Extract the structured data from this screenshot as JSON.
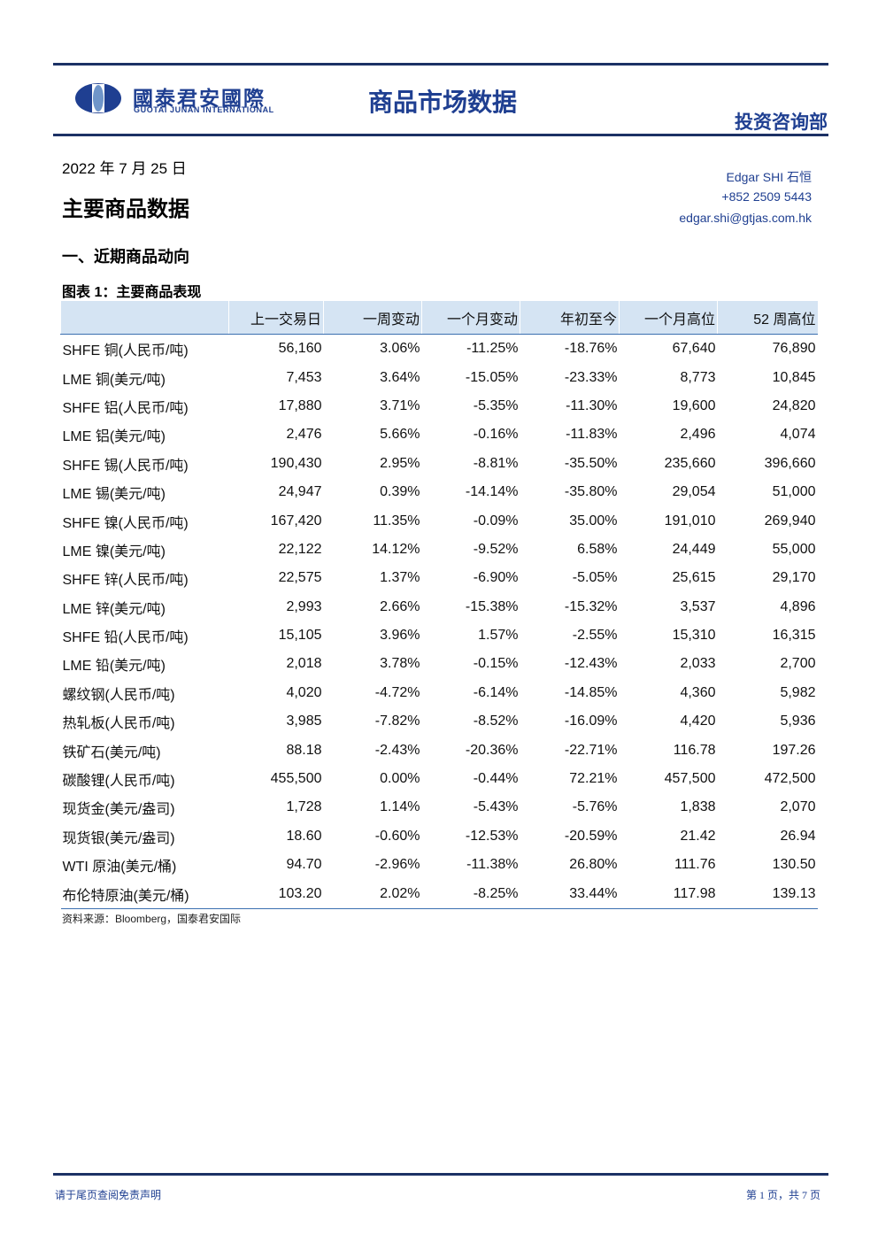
{
  "header": {
    "logo_cn": "國泰君安國際",
    "logo_en": "GUOTAI JUNAN INTERNATIONAL",
    "title": "商品市场数据",
    "department": "投资咨询部"
  },
  "date": "2022 年 7 月 25 日",
  "heading": "主要商品数据",
  "contact": {
    "name": "Edgar SHI  石恒",
    "phone": "+852 2509 5443",
    "email": "edgar.shi@gtjas.com.hk"
  },
  "section": "一、近期商品动向",
  "table": {
    "caption": "图表 1：主要商品表现",
    "columns": [
      "上一交易日",
      "一周变动",
      "一个月变动",
      "年初至今",
      "一个月高位",
      "52 周高位"
    ],
    "rows": [
      [
        "SHFE 铜(人民币/吨)",
        "56,160",
        "3.06%",
        "-11.25%",
        "-18.76%",
        "67,640",
        "76,890"
      ],
      [
        "LME 铜(美元/吨)",
        "7,453",
        "3.64%",
        "-15.05%",
        "-23.33%",
        "8,773",
        "10,845"
      ],
      [
        "SHFE 铝(人民币/吨)",
        "17,880",
        "3.71%",
        "-5.35%",
        "-11.30%",
        "19,600",
        "24,820"
      ],
      [
        "LME 铝(美元/吨)",
        "2,476",
        "5.66%",
        "-0.16%",
        "-11.83%",
        "2,496",
        "4,074"
      ],
      [
        "SHFE 锡(人民币/吨)",
        "190,430",
        "2.95%",
        "-8.81%",
        "-35.50%",
        "235,660",
        "396,660"
      ],
      [
        "LME 锡(美元/吨)",
        "24,947",
        "0.39%",
        "-14.14%",
        "-35.80%",
        "29,054",
        "51,000"
      ],
      [
        "SHFE 镍(人民币/吨)",
        "167,420",
        "11.35%",
        "-0.09%",
        "35.00%",
        "191,010",
        "269,940"
      ],
      [
        "LME 镍(美元/吨)",
        "22,122",
        "14.12%",
        "-9.52%",
        "6.58%",
        "24,449",
        "55,000"
      ],
      [
        "SHFE 锌(人民币/吨)",
        "22,575",
        "1.37%",
        "-6.90%",
        "-5.05%",
        "25,615",
        "29,170"
      ],
      [
        "LME 锌(美元/吨)",
        "2,993",
        "2.66%",
        "-15.38%",
        "-15.32%",
        "3,537",
        "4,896"
      ],
      [
        "SHFE 铅(人民币/吨)",
        "15,105",
        "3.96%",
        "1.57%",
        "-2.55%",
        "15,310",
        "16,315"
      ],
      [
        "LME 铅(美元/吨)",
        "2,018",
        "3.78%",
        "-0.15%",
        "-12.43%",
        "2,033",
        "2,700"
      ],
      [
        "螺纹钢(人民币/吨)",
        "4,020",
        "-4.72%",
        "-6.14%",
        "-14.85%",
        "4,360",
        "5,982"
      ],
      [
        "热轧板(人民币/吨)",
        "3,985",
        "-7.82%",
        "-8.52%",
        "-16.09%",
        "4,420",
        "5,936"
      ],
      [
        "铁矿石(美元/吨)",
        "88.18",
        "-2.43%",
        "-20.36%",
        "-22.71%",
        "116.78",
        "197.26"
      ],
      [
        "碳酸锂(人民币/吨)",
        "455,500",
        "0.00%",
        "-0.44%",
        "72.21%",
        "457,500",
        "472,500"
      ],
      [
        "现货金(美元/盎司)",
        "1,728",
        "1.14%",
        "-5.43%",
        "-5.76%",
        "1,838",
        "2,070"
      ],
      [
        "现货银(美元/盎司)",
        "18.60",
        "-0.60%",
        "-12.53%",
        "-20.59%",
        "21.42",
        "26.94"
      ],
      [
        "WTI 原油(美元/桶)",
        "94.70",
        "-2.96%",
        "-11.38%",
        "26.80%",
        "111.76",
        "130.50"
      ],
      [
        "布伦特原油(美元/桶)",
        "103.20",
        "2.02%",
        "-8.25%",
        "33.44%",
        "117.98",
        "139.13"
      ]
    ],
    "source": "资料来源：Bloomberg，国泰君安国际"
  },
  "footer": {
    "note": "请于尾页查阅免责声明",
    "page": "第 1 页，共 7 页"
  }
}
